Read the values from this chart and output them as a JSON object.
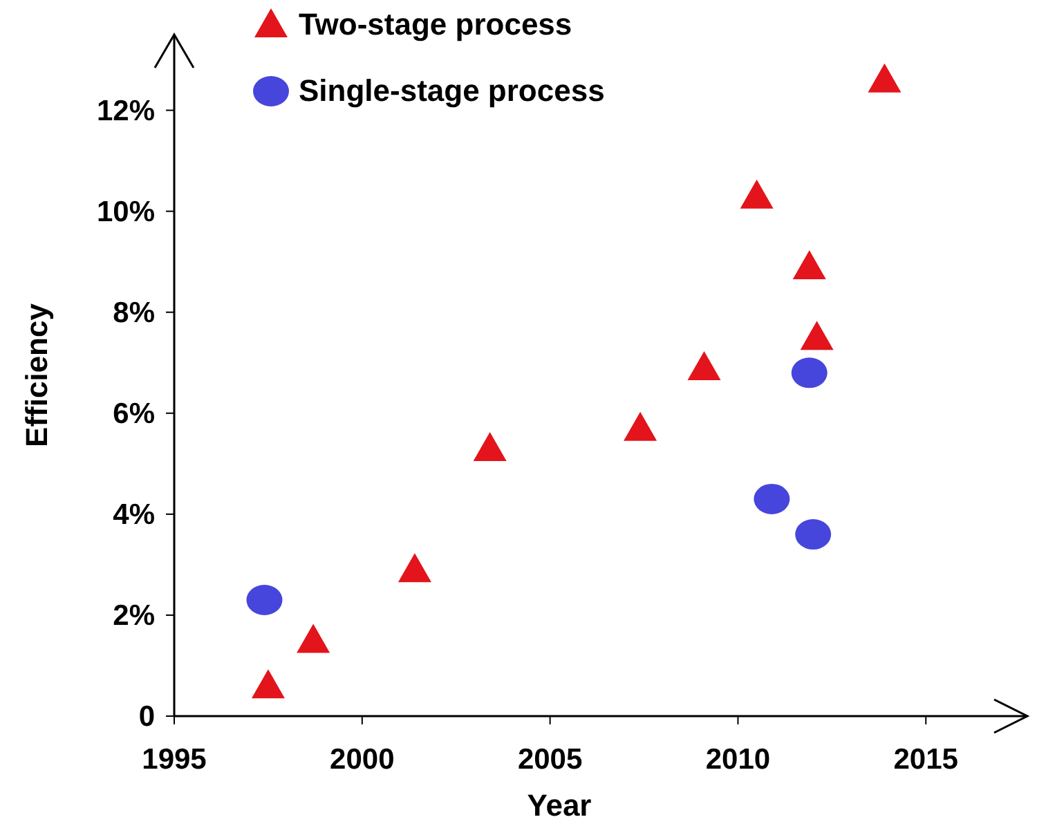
{
  "chart_data": {
    "type": "scatter",
    "xlabel": "Year",
    "ylabel": "Efficiency",
    "xlim": [
      1995,
      2017.7
    ],
    "ylim": [
      0,
      13.5
    ],
    "xticks": [
      1995,
      2000,
      2005,
      2010,
      2015
    ],
    "yticks": [
      0,
      {
        "value": 2,
        "label": "2%"
      },
      {
        "value": 4,
        "label": "4%"
      },
      {
        "value": 6,
        "label": "6%"
      },
      {
        "value": 8,
        "label": "8%"
      },
      {
        "value": 10,
        "label": "10%"
      },
      {
        "value": 12,
        "label": "12%"
      }
    ],
    "grid": false,
    "legend": "top left",
    "series": [
      {
        "name": "Two-stage process",
        "color": "#e3141b",
        "marker": "triangle",
        "x": [
          1997.5,
          1998.7,
          2001.4,
          2003.4,
          2007.4,
          2009.1,
          2010.5,
          2011.9,
          2012.1,
          2013.9
        ],
        "values": [
          0.6,
          1.5,
          2.9,
          5.3,
          5.7,
          6.9,
          10.3,
          8.9,
          7.5,
          12.6
        ]
      },
      {
        "name": "Single-stage process",
        "color": "#4646dc",
        "marker": "circle",
        "x": [
          1997.4,
          2010.9,
          2011.9,
          2012.0
        ],
        "values": [
          2.3,
          4.3,
          6.8,
          3.6
        ]
      }
    ]
  }
}
